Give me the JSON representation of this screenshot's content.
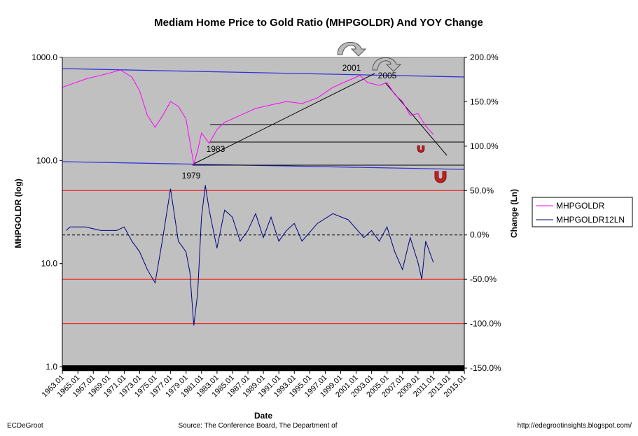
{
  "chart_data": {
    "type": "line",
    "title": "Mediam Home Price to Gold Ratio (MHPGOLDR) And YOY Change",
    "xlabel": "Date",
    "ylabel": "MHPGOLDR (log)",
    "y2label": "Change (Ln)",
    "xlim": [
      1963,
      2015
    ],
    "ylim": [
      1,
      1000
    ],
    "y2lim": [
      -150,
      200
    ],
    "yscale": "log",
    "left_ticks": [
      "1000.0",
      "100.0",
      "10.0",
      "1.0"
    ],
    "left_tick_values": [
      1000,
      100,
      10,
      1
    ],
    "right_ticks": [
      "200.0%",
      "150.0%",
      "100.0%",
      "50.0%",
      "0.0%",
      "-50.0%",
      "-100.0%",
      "-150.0%"
    ],
    "right_tick_values": [
      200,
      150,
      100,
      50,
      0,
      -50,
      -100,
      -150
    ],
    "x_ticks": [
      "1963.01",
      "1965.01",
      "1967.01",
      "1969.01",
      "1971.01",
      "1973.01",
      "1975.01",
      "1977.01",
      "1979.01",
      "1981.01",
      "1983.01",
      "1985.01",
      "1987.01",
      "1989.01",
      "1991.01",
      "1993.01",
      "1995.01",
      "1997.01",
      "1999.01",
      "2001.01",
      "2003.01",
      "2005.01",
      "2007.01",
      "2009.01",
      "2011.01",
      "2013.01",
      "2015.01"
    ],
    "legend": {
      "placement": "right",
      "entries": [
        "MHPGOLDR",
        "MHPGOLDR12LN"
      ]
    },
    "grid": false,
    "series": [
      {
        "name": "MHPGOLDR",
        "axis": "left",
        "color": "#ff00ff",
        "x": [
          1963,
          1966,
          1969,
          1970.5,
          1972,
          1973,
          1974,
          1975,
          1976,
          1977,
          1978,
          1979,
          1980,
          1980.5,
          1981,
          1982,
          1983,
          1984,
          1985,
          1986,
          1987,
          1988,
          1990,
          1992,
          1994,
          1996,
          1998,
          2000,
          2001.5,
          2002.5,
          2004,
          2005,
          2006,
          2007,
          2008,
          2009,
          2010,
          2011
        ],
        "y": [
          512,
          616,
          700,
          755,
          645,
          473,
          274,
          210,
          274,
          373,
          335,
          253,
          92,
          125,
          185,
          147,
          200,
          235,
          253,
          274,
          296,
          320,
          346,
          373,
          357,
          405,
          512,
          597,
          667,
          570,
          535,
          570,
          437,
          373,
          274,
          285,
          216,
          179
        ]
      },
      {
        "name": "MHPGOLDR12LN",
        "axis": "right",
        "color": "#000080",
        "x": [
          1963.5,
          1964,
          1966,
          1968,
          1970,
          1971,
          1972,
          1973,
          1974,
          1975,
          1976,
          1977,
          1978,
          1979,
          1979.5,
          1980,
          1980.5,
          1981,
          1981.5,
          1982,
          1983,
          1984,
          1985,
          1986,
          1987,
          1988,
          1989,
          1990,
          1991,
          1992,
          1993,
          1994,
          1996,
          1998,
          2000,
          2002,
          2003,
          2004,
          2005,
          2006,
          2007,
          2008,
          2009,
          2009.5,
          2010,
          2011
        ],
        "y": [
          5,
          9,
          9,
          5,
          5,
          9,
          -7,
          -19,
          -39,
          -54,
          -3,
          52,
          -7,
          -19,
          -42,
          -102,
          -66,
          20,
          56,
          28,
          -15,
          28,
          20,
          -7,
          5,
          24,
          -3,
          20,
          -7,
          5,
          13,
          -7,
          13,
          24,
          17,
          -3,
          5,
          -7,
          9,
          -19,
          -39,
          -3,
          -31,
          -50,
          -7,
          -31
        ]
      }
    ],
    "annotations": [
      "1979",
      "1983",
      "2001",
      "2005"
    ]
  },
  "footer": {
    "left": "ECDeGroot",
    "center": "Source:  The Conference Board, The Department of",
    "right": "http://edegrootinsights.blogspot.com/"
  }
}
